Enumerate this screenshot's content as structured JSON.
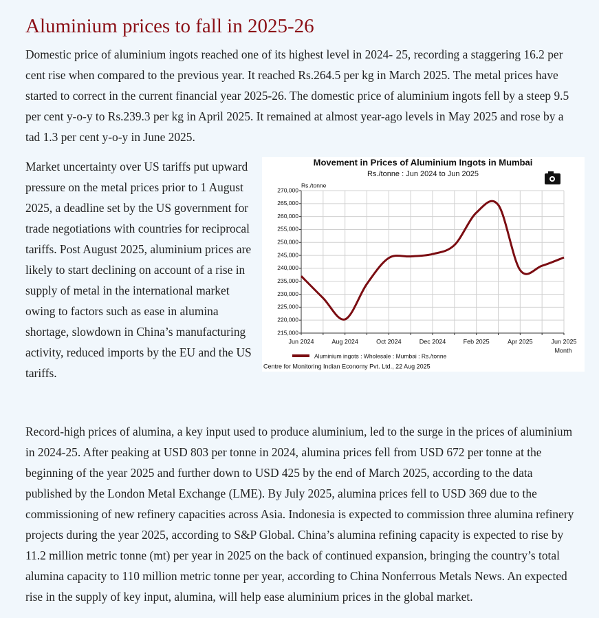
{
  "title": "Aluminium prices to fall in 2025-26",
  "paragraphs": [
    "Domestic price of aluminium ingots reached one of its highest level in 2024- 25, recording a staggering 16.2 per cent rise when compared to the previous year. It reached Rs.264.5 per kg in March 2025. The metal prices have started to correct in the current financial year 2025-26. The domestic price of aluminium ingots fell by a steep 9.5 per cent y-o-y to Rs.239.3 per kg in April 2025. It remained at almost year-ago levels in May 2025 and rose by a tad 1.3 per cent y-o-y in June 2025.",
    "Market uncertainty over US tariffs put upward pressure on the metal prices prior to 1 August 2025, a deadline set by the US government for trade negotiations with countries for reciprocal tariffs. Post August 2025, aluminium prices are likely to start declining on account of a rise in supply of metal in the international market owing to factors such as ease in alumina shortage, slowdown in China’s manufacturing activity, reduced imports by the EU and the US tariffs.",
    "Record-high prices of alumina, a key input used to produce aluminium, led to the surge in the prices of aluminium in 2024-25. After peaking at USD 803 per tonne in 2024, alumina prices fell from USD 672 per tonne at the beginning of the year 2025 and further down to USD 425 by the end of March 2025, according to the data published by the London Metal Exchange (LME). By July 2025, alumina prices fell to USD 369 due to the commissioning of new refinery capacities across Asia. Indonesia is expected to commission three alumina refinery projects during the year 2025, according to S&P Global. China’s alumina refining capacity is expected to rise by 11.2 million metric tonne (mt) per year in 2025 on the back of continued expansion, bringing the country’s total alumina capacity to 110 million metric tonne per year, according to China Nonferrous Metals News. An expected rise in the supply of key input, alumina, will help ease aluminium prices in the global market."
  ],
  "chart_data": {
    "type": "line",
    "title": "Movement in Prices of Aluminium Ingots in Mumbai",
    "subtitle": "Rs./tonne : Jun 2024 to Jun 2025",
    "y_label": "Rs./tonne",
    "x_label": "Month",
    "source": "Centre for Monitoring Indian Economy Pvt. Ltd., 22 Aug 2025",
    "categories": [
      "Jun 2024",
      null,
      "Aug 2024",
      null,
      "Oct 2024",
      null,
      "Dec 2024",
      null,
      "Feb 2025",
      null,
      "Apr 2025",
      null,
      "Jun 2025"
    ],
    "series": [
      {
        "name": "Aluminium ingots : Wholesale : Mumbai : Rs./tonne",
        "color": "#7b0d12",
        "values": [
          237000,
          228500,
          220300,
          234000,
          244000,
          244600,
          245500,
          249000,
          261500,
          264500,
          239300,
          241000,
          244200
        ]
      }
    ],
    "ylim": [
      215000,
      270000
    ],
    "yticks": [
      {
        "value": 215000,
        "label": "215,000"
      },
      {
        "value": 220000,
        "label": "220,000"
      },
      {
        "value": 225000,
        "label": "225,000"
      },
      {
        "value": 230000,
        "label": "230,000"
      },
      {
        "value": 235000,
        "label": "235,000"
      },
      {
        "value": 240000,
        "label": "240,000"
      },
      {
        "value": 245000,
        "label": "245,000"
      },
      {
        "value": 250000,
        "label": "250,000"
      },
      {
        "value": 255000,
        "label": "255,000"
      },
      {
        "value": 260000,
        "label": "260,000"
      },
      {
        "value": 265000,
        "label": "265,000"
      },
      {
        "value": 270000,
        "label": "270,000"
      }
    ],
    "grid": true
  }
}
